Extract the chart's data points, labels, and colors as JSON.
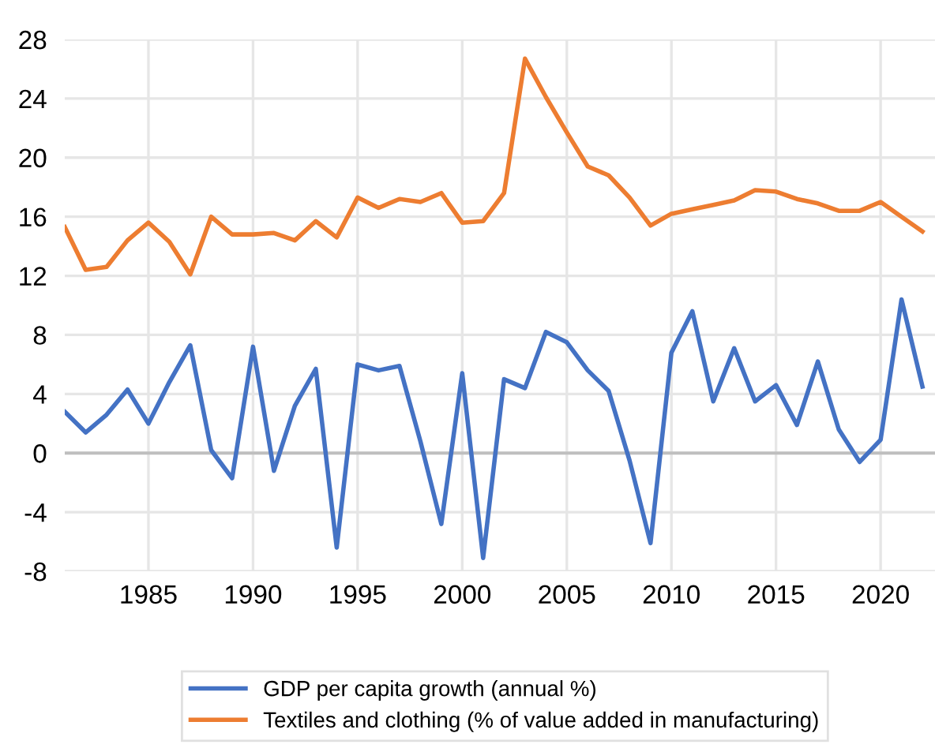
{
  "chart_data": {
    "type": "line",
    "x": [
      1981,
      1982,
      1983,
      1984,
      1985,
      1986,
      1987,
      1988,
      1989,
      1990,
      1991,
      1992,
      1993,
      1994,
      1995,
      1996,
      1997,
      1998,
      1999,
      2000,
      2001,
      2002,
      2003,
      2004,
      2005,
      2006,
      2007,
      2008,
      2009,
      2010,
      2011,
      2012,
      2013,
      2014,
      2015,
      2016,
      2017,
      2018,
      2019,
      2020,
      2021,
      2022
    ],
    "series": [
      {
        "name": "GDP per capita growth (annual %)",
        "color": "#4472c4",
        "values": [
          2.8,
          1.4,
          2.6,
          4.3,
          2.0,
          4.8,
          7.3,
          0.2,
          -1.7,
          7.2,
          -1.2,
          3.2,
          5.7,
          -6.4,
          6.0,
          5.6,
          5.9,
          0.8,
          -4.8,
          5.4,
          -7.1,
          5.0,
          4.4,
          8.2,
          7.5,
          5.6,
          4.2,
          -0.5,
          -6.1,
          6.8,
          9.6,
          3.5,
          7.1,
          3.5,
          4.6,
          1.9,
          6.2,
          1.6,
          -0.6,
          0.9,
          10.4,
          4.5
        ]
      },
      {
        "name": "Textiles and clothing (% of value added in manufacturing)",
        "color": "#ed7d31",
        "values": [
          15.3,
          12.4,
          12.6,
          14.4,
          15.6,
          14.3,
          12.1,
          16.0,
          14.8,
          14.8,
          14.9,
          14.4,
          15.7,
          14.6,
          17.3,
          16.6,
          17.2,
          17.0,
          17.6,
          15.6,
          15.7,
          17.6,
          26.7,
          24.1,
          21.7,
          19.4,
          18.8,
          17.3,
          15.4,
          16.2,
          16.5,
          16.8,
          17.1,
          17.8,
          17.7,
          17.2,
          16.9,
          16.4,
          16.4,
          17.0,
          16.0,
          15.0
        ]
      }
    ],
    "xlim": [
      1981,
      2022.6
    ],
    "xticks": [
      1985,
      1990,
      1995,
      2000,
      2005,
      2010,
      2015,
      2020
    ],
    "ylim": [
      -8,
      28
    ],
    "yticks": [
      -8,
      -4,
      0,
      4,
      8,
      12,
      16,
      20,
      24,
      28
    ],
    "ref_lines": [
      {
        "axis": "y",
        "value": 0,
        "color": "#bfbfbf"
      }
    ],
    "grid": true,
    "legend": "bottom",
    "marker": "none",
    "line_style": "solid"
  }
}
